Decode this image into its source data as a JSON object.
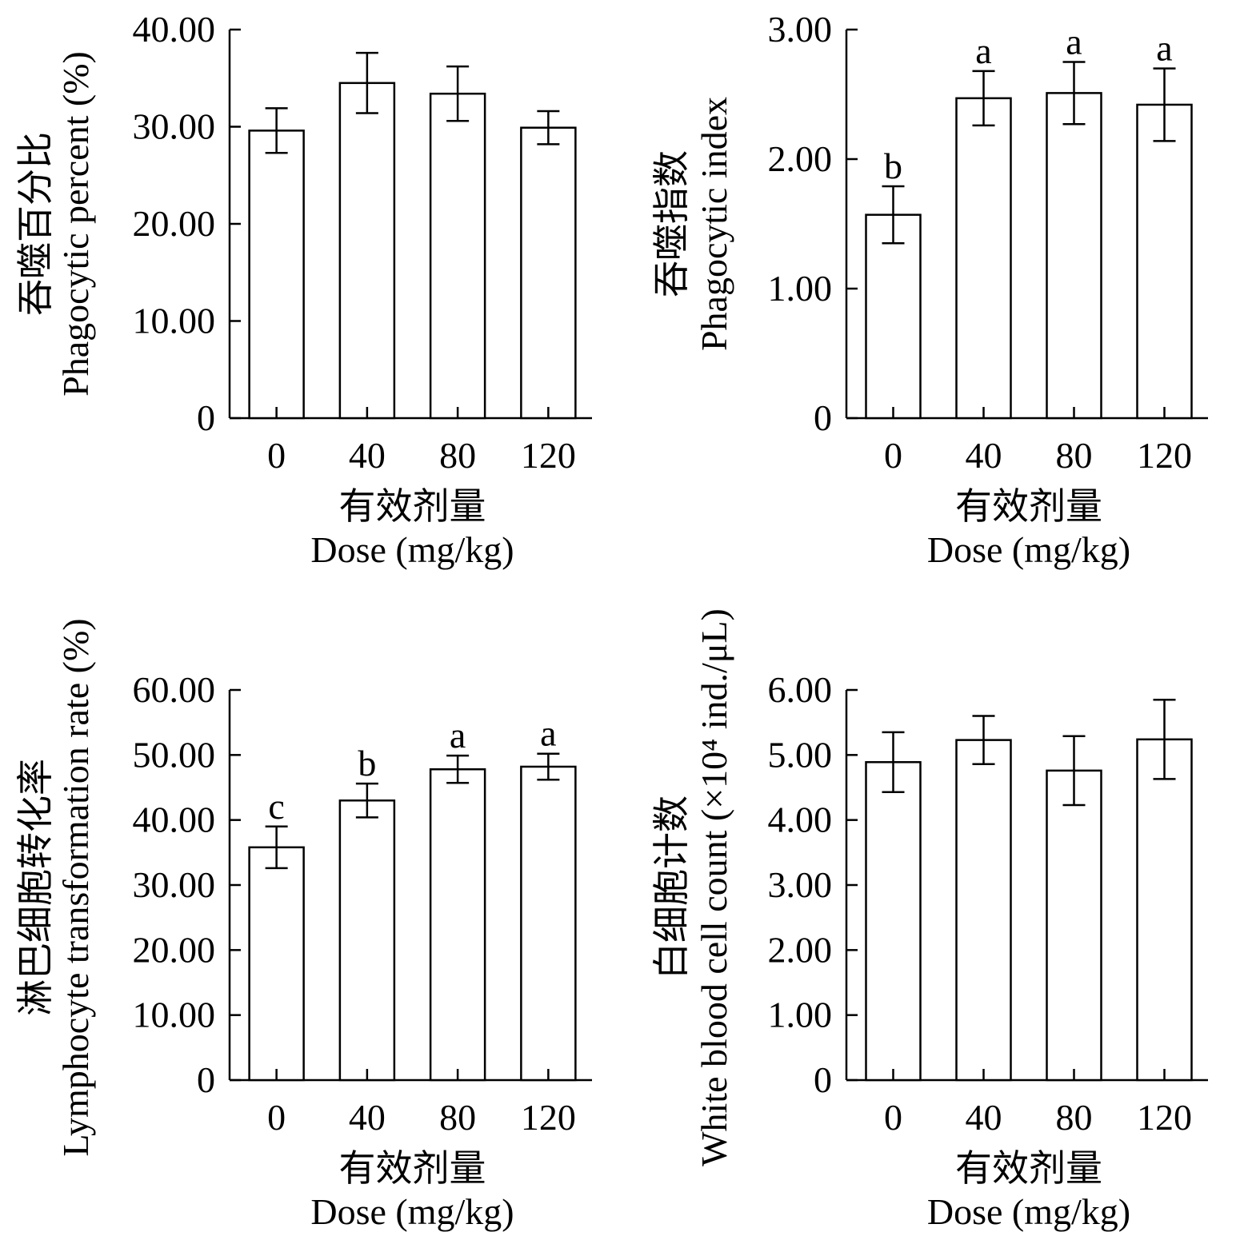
{
  "chart_data": [
    {
      "type": "bar",
      "ylabel_cn": "吞噬百分比",
      "ylabel": "Phagocytic percent (%)",
      "xlabel_cn": "有效剂量",
      "xlabel": "Dose (mg/kg)",
      "categories": [
        "0",
        "40",
        "80",
        "120"
      ],
      "values": [
        29.6,
        34.5,
        33.4,
        29.9
      ],
      "errors": [
        2.3,
        3.1,
        2.8,
        1.7
      ],
      "letters": [
        "",
        "",
        "",
        ""
      ],
      "ylim": [
        0,
        40
      ],
      "yticks": [
        "0",
        "10.00",
        "20.00",
        "30.00",
        "40.00"
      ]
    },
    {
      "type": "bar",
      "ylabel_cn": "吞噬指数",
      "ylabel": "Phagocytic index",
      "xlabel_cn": "有效剂量",
      "xlabel": "Dose (mg/kg)",
      "categories": [
        "0",
        "40",
        "80",
        "120"
      ],
      "values": [
        1.57,
        2.47,
        2.51,
        2.42
      ],
      "errors": [
        0.22,
        0.21,
        0.24,
        0.28
      ],
      "letters": [
        "b",
        "a",
        "a",
        "a"
      ],
      "ylim": [
        0,
        3
      ],
      "yticks": [
        "0",
        "1.00",
        "2.00",
        "3.00"
      ]
    },
    {
      "type": "bar",
      "ylabel_cn": "淋巴细胞转化率",
      "ylabel": "Lymphocyte transformation rate (%)",
      "xlabel_cn": "有效剂量",
      "xlabel": "Dose (mg/kg)",
      "categories": [
        "0",
        "40",
        "80",
        "120"
      ],
      "values": [
        35.8,
        43.0,
        47.8,
        48.2
      ],
      "errors": [
        3.2,
        2.6,
        2.1,
        2.0
      ],
      "letters": [
        "c",
        "b",
        "a",
        "a"
      ],
      "ylim": [
        0,
        60
      ],
      "yticks": [
        "0",
        "10.00",
        "20.00",
        "30.00",
        "40.00",
        "50.00",
        "60.00"
      ]
    },
    {
      "type": "bar",
      "ylabel_cn": "白细胞计数",
      "ylabel": "White blood cell count (×10⁴ ind./μL)",
      "xlabel_cn": "有效剂量",
      "xlabel": "Dose (mg/kg)",
      "categories": [
        "0",
        "40",
        "80",
        "120"
      ],
      "values": [
        4.89,
        5.23,
        4.76,
        5.24
      ],
      "errors": [
        0.46,
        0.37,
        0.53,
        0.61
      ],
      "letters": [
        "",
        "",
        "",
        ""
      ],
      "ylim": [
        0,
        6
      ],
      "yticks": [
        "0",
        "1.00",
        "2.00",
        "3.00",
        "4.00",
        "5.00",
        "6.00"
      ]
    }
  ]
}
